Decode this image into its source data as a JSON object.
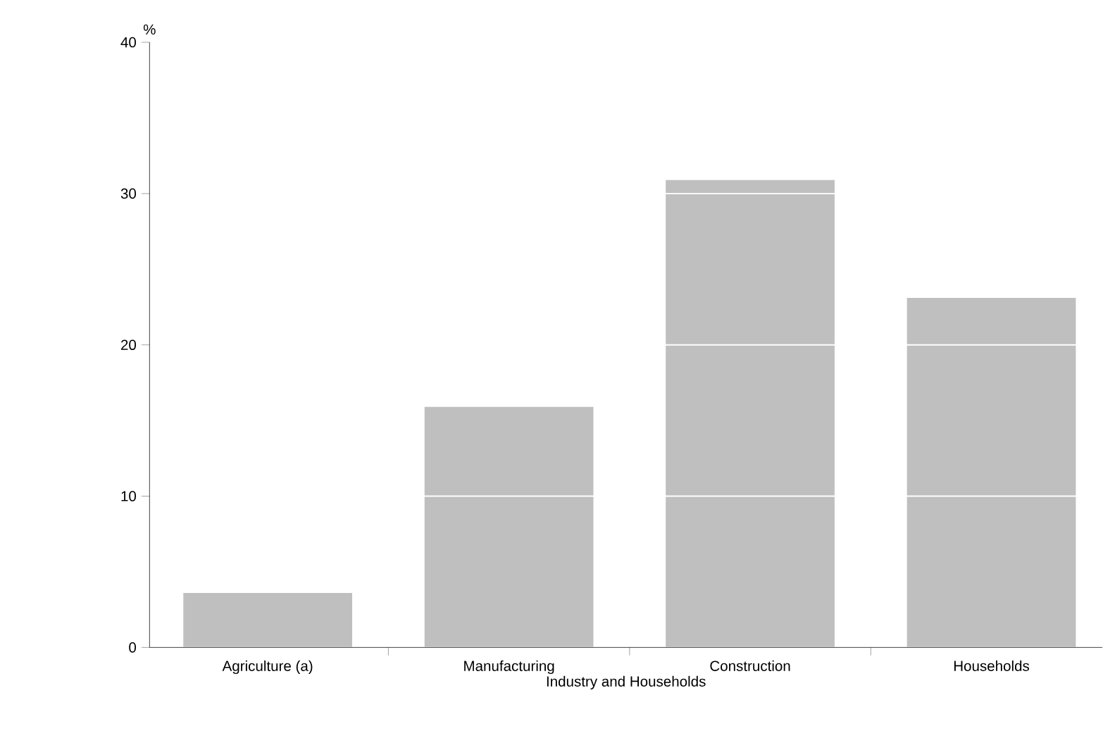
{
  "chart_data": {
    "type": "bar",
    "ylabel": "%",
    "xlabel": "Industry and Households",
    "categories": [
      "Agriculture (a)",
      "Manufacturing",
      "Construction",
      "Households"
    ],
    "values": [
      3.6,
      15.9,
      30.9,
      23.1
    ],
    "color": "#bfbfbf",
    "ylim": [
      0,
      40
    ],
    "yticks": [
      0,
      10,
      20,
      30,
      40
    ],
    "grid": "y"
  }
}
